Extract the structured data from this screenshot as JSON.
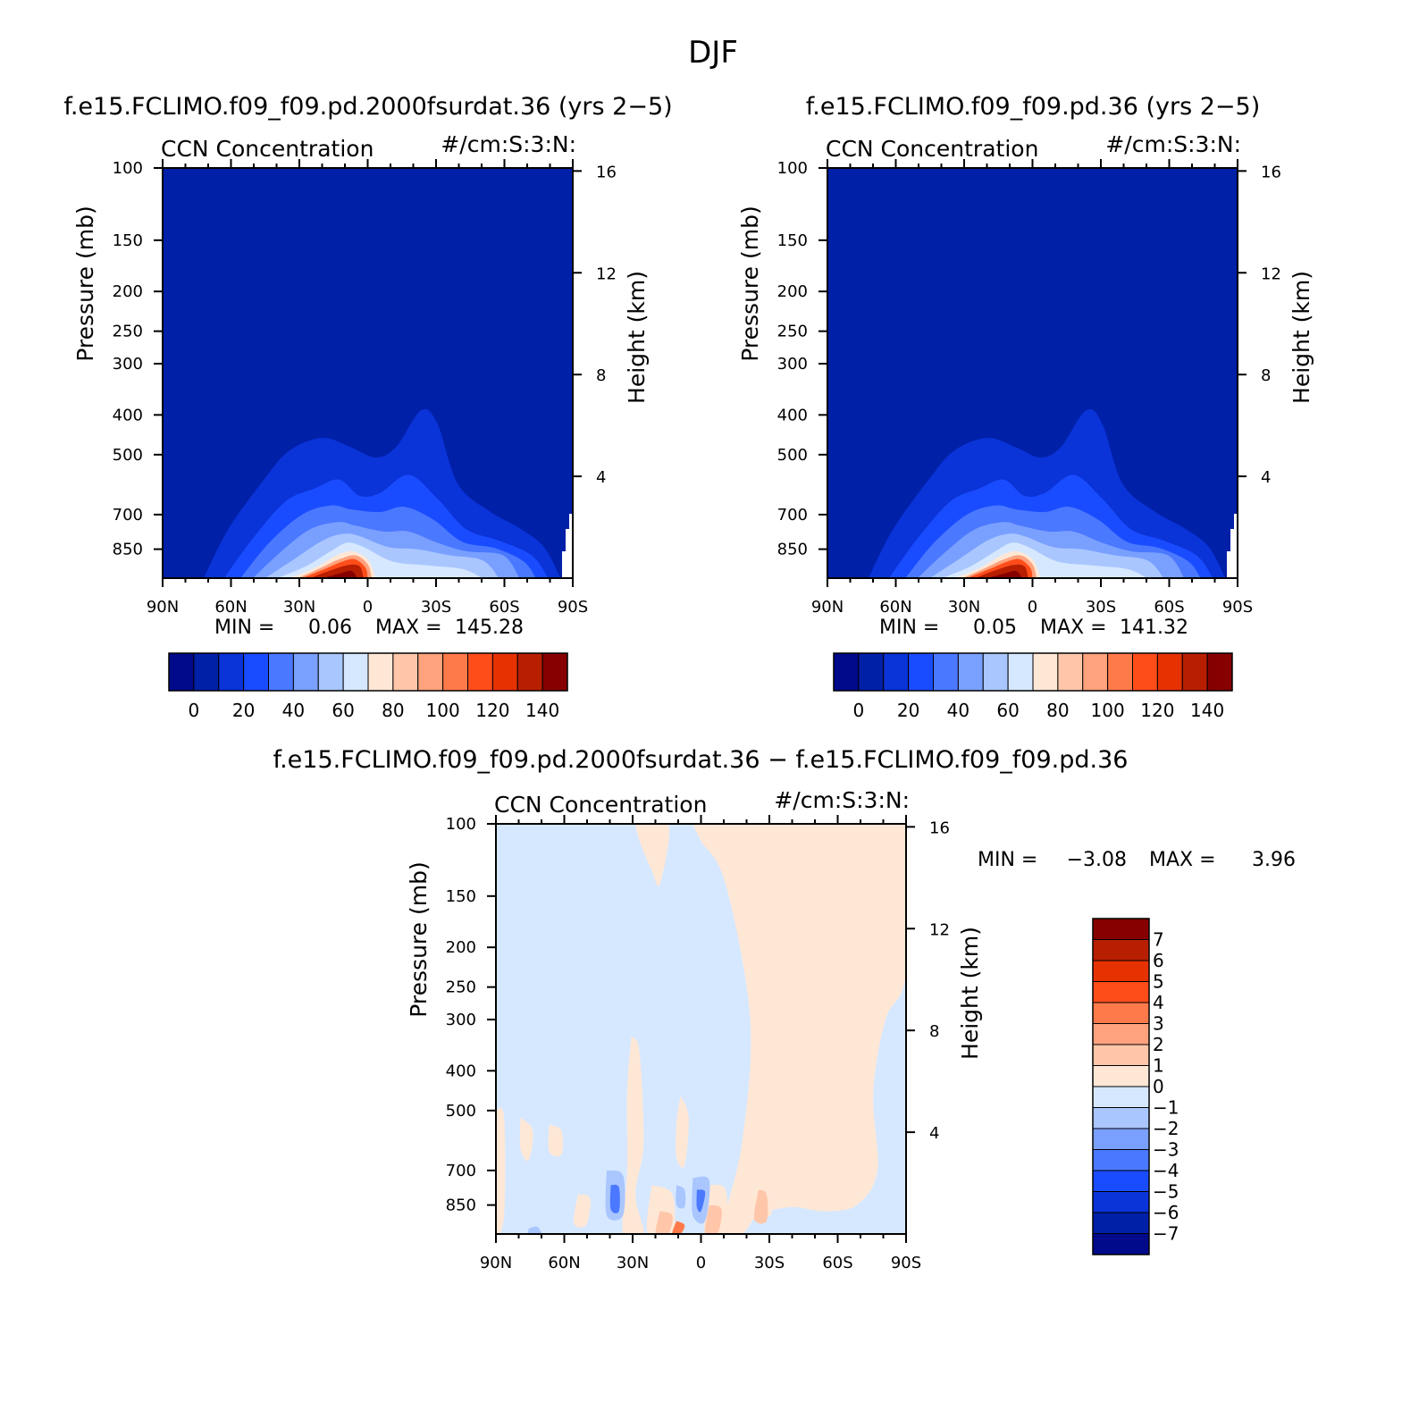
{
  "suptitle": "DJF",
  "panel_label": "CCN Concentration",
  "units": "#/cm:S:3:N:",
  "left_axis_label": "Pressure (mb)",
  "right_axis_label": "Height (km)",
  "colors": {
    "mean_scale": [
      "#000a8a",
      "#0020a8",
      "#0a33d8",
      "#1a4cff",
      "#4a78ff",
      "#7aa0ff",
      "#aac6ff",
      "#d6e8ff",
      "#ffe7d6",
      "#ffc6aa",
      "#ffa27d",
      "#ff7a4a",
      "#ff4d1a",
      "#e63200",
      "#b81f00",
      "#870000"
    ],
    "diff_scale": [
      "#000a8a",
      "#0020a8",
      "#0a33d8",
      "#1a4cff",
      "#4a78ff",
      "#7aa0ff",
      "#aac6ff",
      "#d6e8ff",
      "#ffe7d6",
      "#ffc6aa",
      "#ffa27d",
      "#ff7a4a",
      "#ff4d1a",
      "#e63200",
      "#b81f00",
      "#870000"
    ]
  },
  "panels": [
    {
      "title": "f.e15.FCLIMO.f09_f09.pd.2000fsurdat.36 (yrs 2−5)",
      "min_label": "MIN =",
      "min": "0.06",
      "max_label": "MAX =",
      "max": "145.28"
    },
    {
      "title": "f.e15.FCLIMO.f09_f09.pd.36 (yrs 2−5)",
      "min_label": "MIN =",
      "min": "0.05",
      "max_label": "MAX =",
      "max": "141.32"
    },
    {
      "title": "f.e15.FCLIMO.f09_f09.pd.2000fsurdat.36 − f.e15.FCLIMO.f09_f09.pd.36",
      "min_label": "MIN =",
      "min": "−3.08",
      "max_label": "MAX =",
      "max": "3.96"
    }
  ],
  "chart_data": [
    {
      "type": "heatmap",
      "title": "f.e15.FCLIMO.f09_f09.pd.2000fsurdat.36 (yrs 2−5)",
      "subtitle": "CCN Concentration",
      "units": "#/cm:S:3:N:",
      "xlabel": "",
      "ylabel": "Pressure (mb)",
      "ylabel_right": "Height (km)",
      "x_ticks": [
        "90N",
        "60N",
        "30N",
        "0",
        "30S",
        "60S",
        "90S"
      ],
      "y_ticks": [
        100,
        150,
        200,
        250,
        300,
        400,
        500,
        700,
        850
      ],
      "y_right_ticks": [
        16,
        12,
        8,
        4
      ],
      "ylim": [
        100,
        1000
      ],
      "yscale": "log",
      "y_inverted": true,
      "contour_levels": [
        0,
        10,
        20,
        30,
        40,
        50,
        60,
        70,
        80,
        90,
        100,
        110,
        120,
        130,
        140
      ],
      "colorbar_labels": [
        "0",
        "20",
        "40",
        "60",
        "80",
        "100",
        "120",
        "140"
      ],
      "min": 0.06,
      "max": 145.28
    },
    {
      "type": "heatmap",
      "title": "f.e15.FCLIMO.f09_f09.pd.36 (yrs 2−5)",
      "subtitle": "CCN Concentration",
      "units": "#/cm:S:3:N:",
      "xlabel": "",
      "ylabel": "Pressure (mb)",
      "ylabel_right": "Height (km)",
      "x_ticks": [
        "90N",
        "60N",
        "30N",
        "0",
        "30S",
        "60S",
        "90S"
      ],
      "y_ticks": [
        100,
        150,
        200,
        250,
        300,
        400,
        500,
        700,
        850
      ],
      "y_right_ticks": [
        16,
        12,
        8,
        4
      ],
      "ylim": [
        100,
        1000
      ],
      "yscale": "log",
      "y_inverted": true,
      "contour_levels": [
        0,
        10,
        20,
        30,
        40,
        50,
        60,
        70,
        80,
        90,
        100,
        110,
        120,
        130,
        140
      ],
      "colorbar_labels": [
        "0",
        "20",
        "40",
        "60",
        "80",
        "100",
        "120",
        "140"
      ],
      "min": 0.05,
      "max": 141.32
    },
    {
      "type": "heatmap",
      "title": "f.e15.FCLIMO.f09_f09.pd.2000fsurdat.36 − f.e15.FCLIMO.f09_f09.pd.36",
      "subtitle": "CCN Concentration",
      "units": "#/cm:S:3:N:",
      "xlabel": "",
      "ylabel": "Pressure (mb)",
      "ylabel_right": "Height (km)",
      "x_ticks": [
        "90N",
        "60N",
        "30N",
        "0",
        "30S",
        "60S",
        "90S"
      ],
      "y_ticks": [
        100,
        150,
        200,
        250,
        300,
        400,
        500,
        700,
        850
      ],
      "y_right_ticks": [
        16,
        12,
        8,
        4
      ],
      "ylim": [
        100,
        1000
      ],
      "yscale": "log",
      "y_inverted": true,
      "contour_levels": [
        -7,
        -6,
        -5,
        -4,
        -3,
        -2,
        -1,
        0,
        1,
        2,
        3,
        4,
        5,
        6,
        7
      ],
      "colorbar_labels": [
        "7",
        "6",
        "5",
        "4",
        "3",
        "2",
        "1",
        "0",
        "−1",
        "−2",
        "−3",
        "−4",
        "−5",
        "−6",
        "−7"
      ],
      "min": -3.08,
      "max": 3.96
    }
  ]
}
